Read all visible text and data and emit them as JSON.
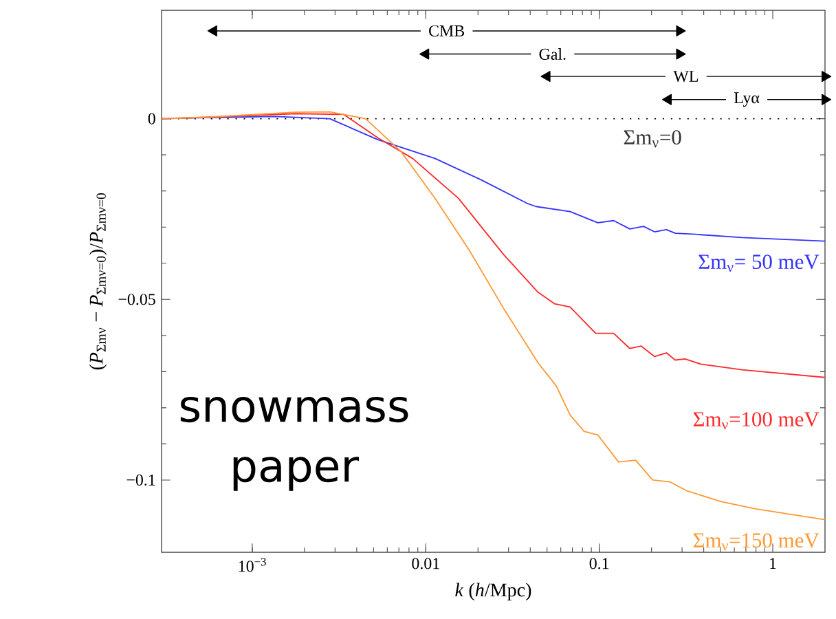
{
  "chart_data": {
    "type": "line",
    "xlabel": "*k* (*h*/Mpc)",
    "ylabel": "(*P*$_{Σmν}$ − *P*$_{Σmν=0}$)/*P*$_{Σmν=0}$",
    "log": "x",
    "xlim": [
      0.0003,
      2
    ],
    "ylim": [
      -0.12,
      0.03
    ],
    "xticks": [
      {
        "value": 0.001,
        "label": "10$^{−3}$"
      },
      0.01,
      0.1,
      1
    ],
    "yticks": [
      {
        "value": -0.1,
        "label": "−0.1"
      },
      {
        "value": -0.05,
        "label": "−0.05"
      },
      0
    ],
    "series": [
      {
        "name": "Σm$_{ν}$= 50 meV",
        "color": "#3333ff",
        "x": [
          0.0003,
          0.00054,
          0.00135,
          0.0028,
          0.0053,
          0.0113,
          0.0208,
          0.0383,
          0.0431,
          0.0679,
          0.098,
          0.121,
          0.15,
          0.18,
          0.208,
          0.244,
          0.274,
          0.36,
          0.664,
          2
        ],
        "values": [
          0,
          0.0003,
          0.0006,
          0,
          -0.0058,
          -0.011,
          -0.0169,
          -0.0234,
          -0.0243,
          -0.0257,
          -0.0288,
          -0.0282,
          -0.0305,
          -0.0298,
          -0.0313,
          -0.0307,
          -0.0317,
          -0.032,
          -0.0329,
          -0.0339
        ]
      },
      {
        "name": "Σm$_{ν}$=100 meV",
        "color": "#ff2a2a",
        "x": [
          0.0003,
          0.00054,
          0.00177,
          0.00336,
          0.0053,
          0.0084,
          0.0154,
          0.0281,
          0.0443,
          0.0551,
          0.0679,
          0.0953,
          0.121,
          0.15,
          0.174,
          0.208,
          0.244,
          0.274,
          0.312,
          0.384,
          0.664,
          2
        ],
        "values": [
          0,
          0.0004,
          0.0014,
          0.0012,
          -0.0053,
          -0.011,
          -0.022,
          -0.0376,
          -0.048,
          -0.0512,
          -0.0521,
          -0.0594,
          -0.0594,
          -0.0636,
          -0.0629,
          -0.0658,
          -0.0648,
          -0.0668,
          -0.0665,
          -0.0679,
          -0.0695,
          -0.0716
        ]
      },
      {
        "name": "Σm$_{ν}$=150 meV",
        "color": "#ff9933",
        "x": [
          0.0003,
          0.00054,
          0.00177,
          0.0028,
          0.0045,
          0.0072,
          0.0113,
          0.0178,
          0.0281,
          0.0443,
          0.0566,
          0.0679,
          0.0816,
          0.098,
          0.129,
          0.162,
          0.203,
          0.255,
          0.32,
          0.505,
          0.796,
          2
        ],
        "values": [
          0,
          0.0004,
          0.0018,
          0.0019,
          0,
          -0.0091,
          -0.022,
          -0.0364,
          -0.0525,
          -0.0675,
          -0.074,
          -0.082,
          -0.0865,
          -0.0875,
          -0.095,
          -0.0945,
          -0.1,
          -0.1005,
          -0.103,
          -0.106,
          -0.108,
          -0.111
        ]
      },
      {
        "name": "CMB",
        "type": "line",
        "marker": "triangle",
        "color": "#000000",
        "x": [
          0.0006,
          0.29
        ],
        "values": [
          0.0243,
          0.0243
        ]
      },
      {
        "name": "Gal.",
        "type": "line",
        "marker": "triangle",
        "color": "#000000",
        "x": [
          0.01,
          0.29
        ],
        "values": [
          0.0179,
          0.0179
        ]
      },
      {
        "name": "WL",
        "type": "line",
        "marker": "triangle",
        "color": "#000000",
        "x": [
          0.05,
          2
        ],
        "values": [
          0.0117,
          0.0117
        ]
      },
      {
        "name": "Lyα",
        "type": "line",
        "marker": "triangle",
        "color": "#000000",
        "x": [
          0.25,
          2
        ],
        "values": [
          0.0053,
          0.0053
        ]
      }
    ],
    "ref_lines": [
      {
        "axis": "y",
        "value": 0,
        "label": "Σm$_{ν}$=0",
        "color": "#000000",
        "line_style": "dotted"
      }
    ],
    "annotations": [
      "snowmass paper"
    ]
  }
}
